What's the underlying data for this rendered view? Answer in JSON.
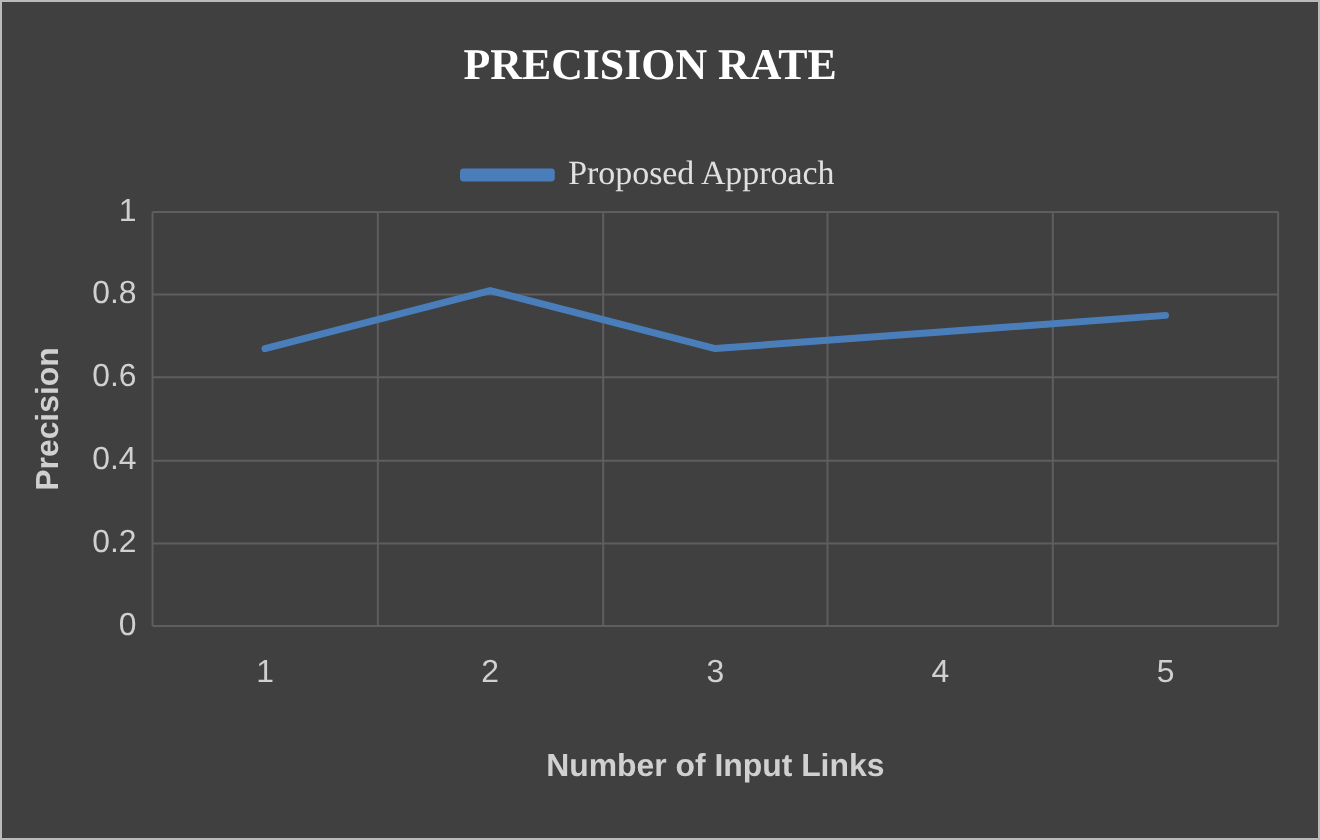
{
  "chart_data": {
    "type": "line",
    "title": "PRECISION RATE",
    "xlabel": "Number of Input Links",
    "ylabel": "Precision",
    "categories": [
      "1",
      "2",
      "3",
      "4",
      "5"
    ],
    "series": [
      {
        "name": "Proposed Approach",
        "color": "#4a7ebb",
        "values": [
          0.67,
          0.81,
          0.67,
          0.71,
          0.75
        ]
      }
    ],
    "ylim": [
      0,
      1
    ],
    "yticks": [
      0,
      0.2,
      0.4,
      0.6,
      0.8,
      1
    ],
    "grid": true,
    "legend": "top",
    "marker": "none",
    "line_style": "solid"
  }
}
